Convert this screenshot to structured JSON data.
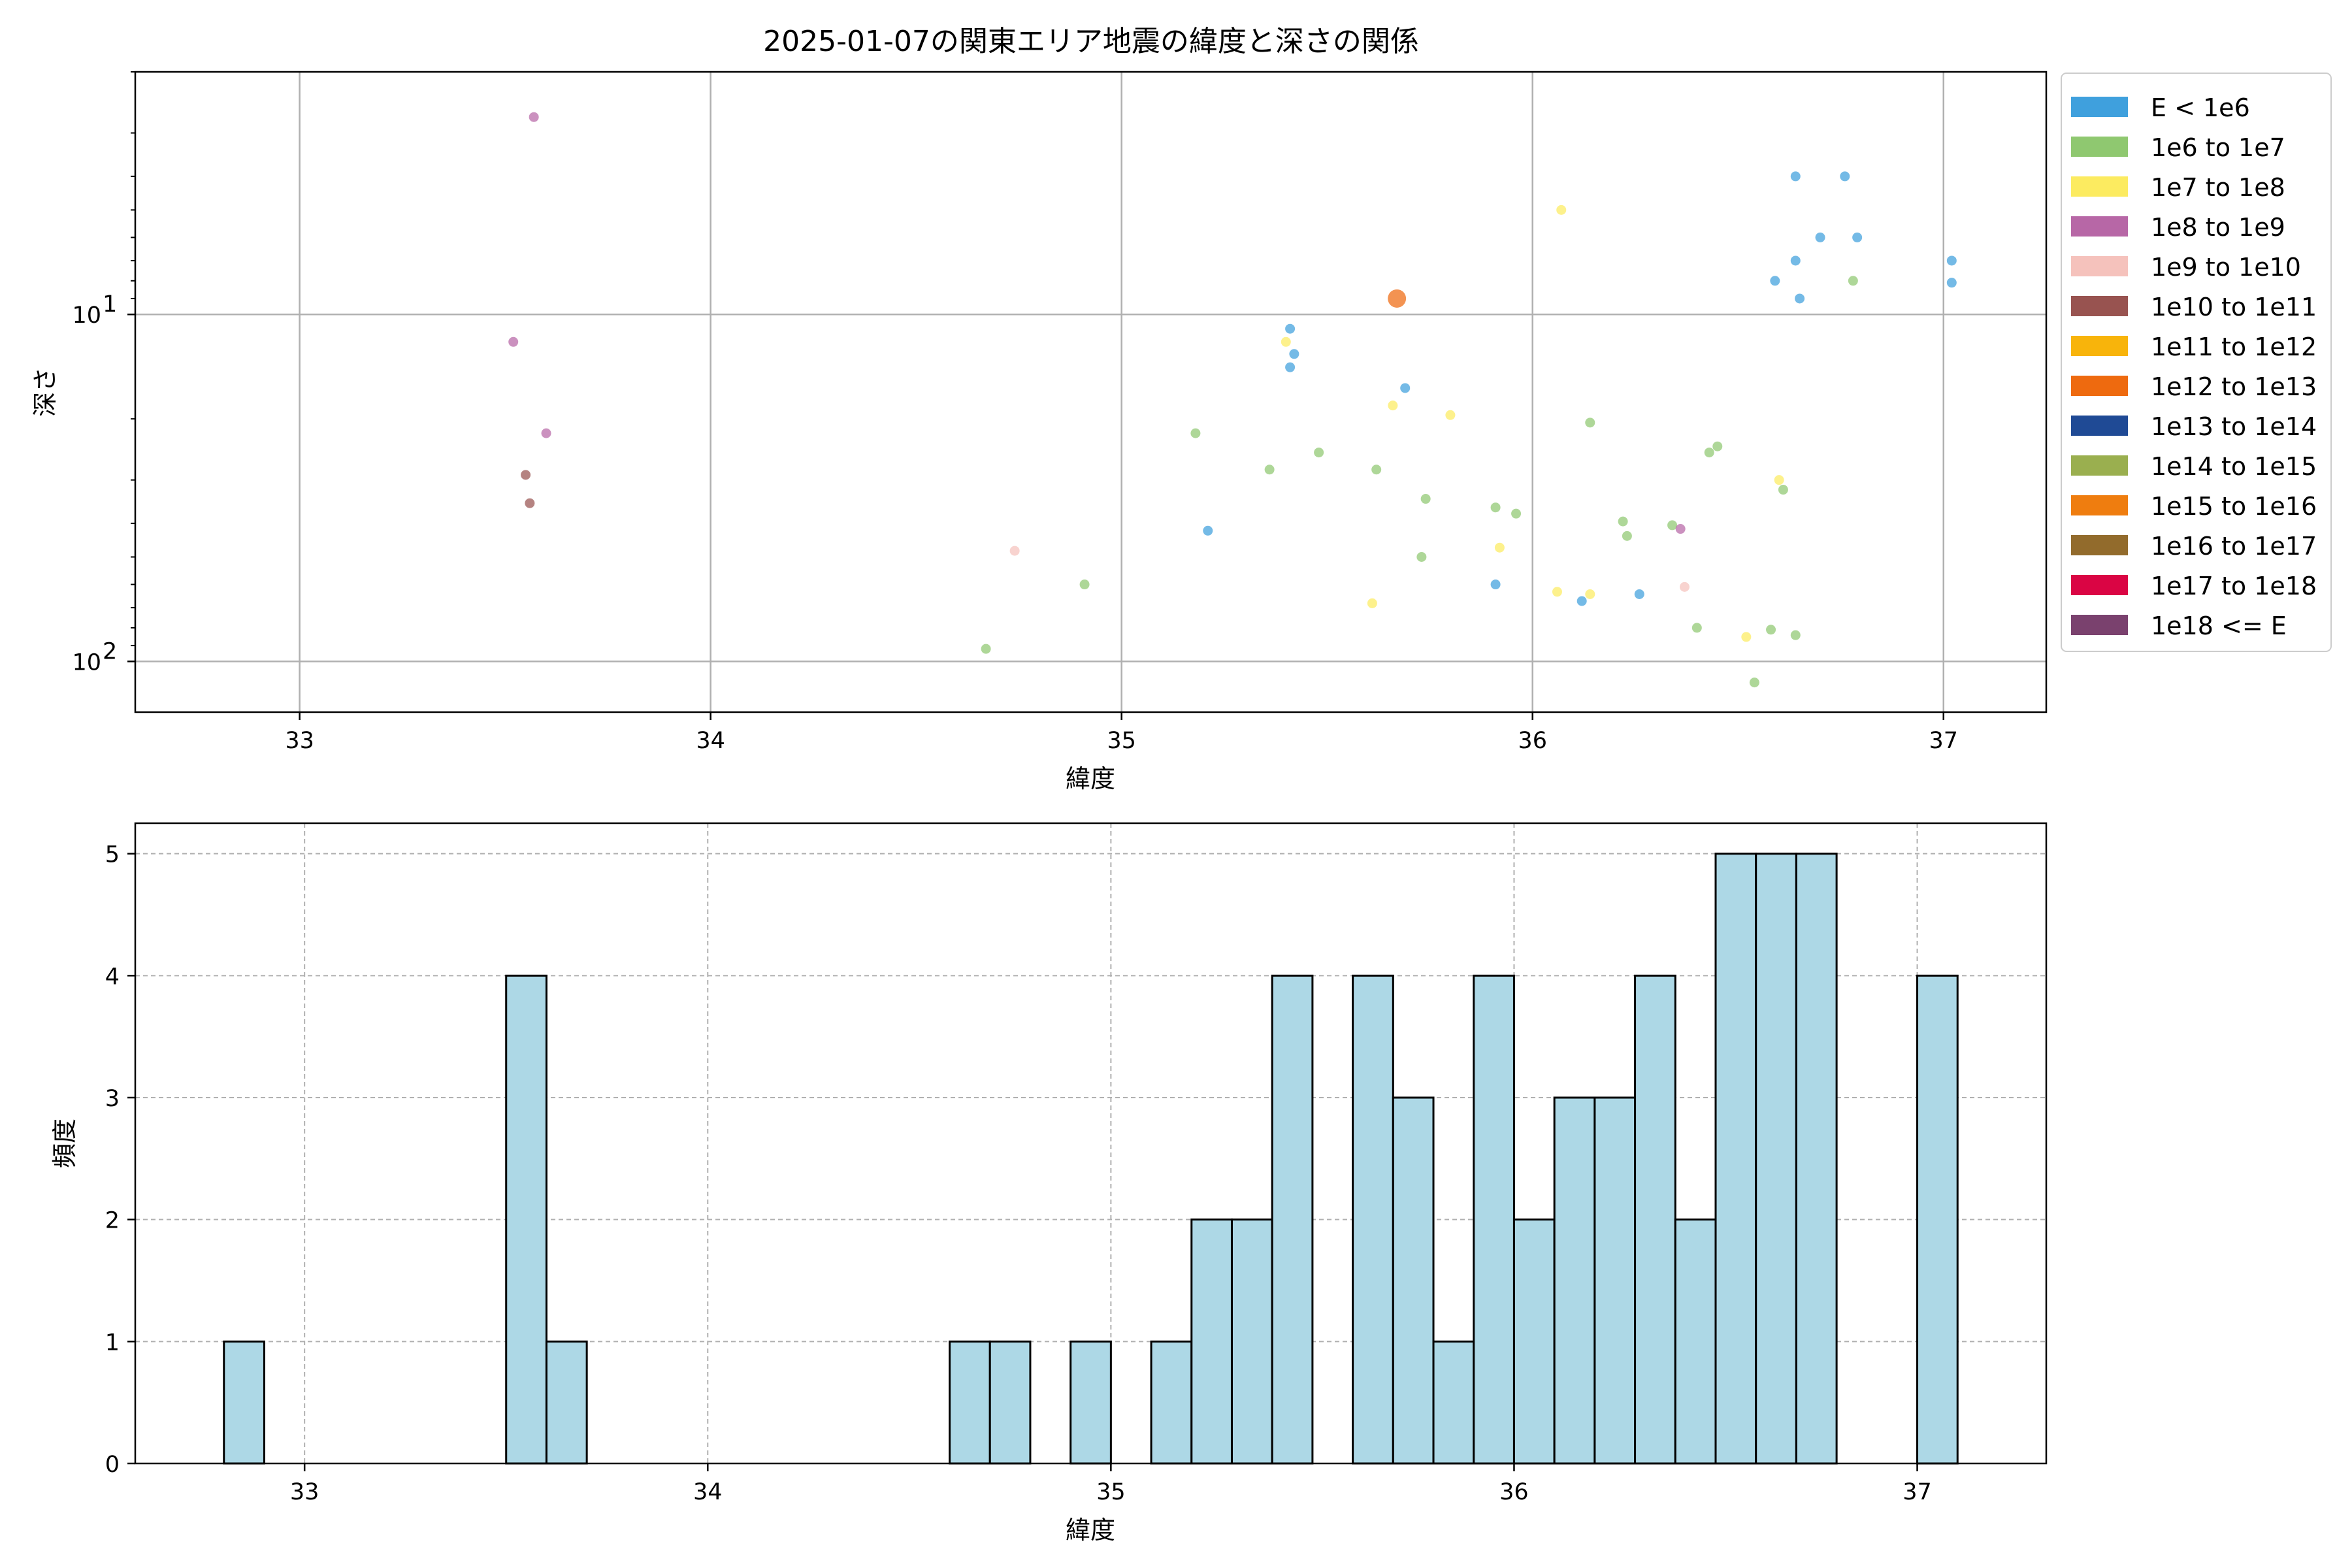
{
  "chart_data": [
    {
      "type": "scatter",
      "title": "2025-01-07の関東エリア地震の緯度と深さの関係",
      "xlabel": "緯度",
      "ylabel": "深さ",
      "xlim": [
        32.6,
        37.25
      ],
      "xticks": [
        33,
        34,
        35,
        36,
        37
      ],
      "yscale": "log",
      "yinverted": true,
      "ylim": [
        140,
        2
      ],
      "yticks": [
        {
          "value": 10,
          "label": "10",
          "sup": "1"
        },
        {
          "value": 100,
          "label": "10",
          "sup": "2"
        }
      ],
      "grid": true,
      "legend_position": "outside-right",
      "legend": [
        {
          "label": "E < 1e6",
          "color": "#3fa0dd"
        },
        {
          "label": "1e6 to 1e7",
          "color": "#8fc870"
        },
        {
          "label": "1e7 to 1e8",
          "color": "#fceb60"
        },
        {
          "label": "1e8 to 1e9",
          "color": "#b767a6"
        },
        {
          "label": "1e9 to 1e10",
          "color": "#f5c2bc"
        },
        {
          "label": "1e10 to 1e11",
          "color": "#985350"
        },
        {
          "label": "1e11 to 1e12",
          "color": "#f8b40b"
        },
        {
          "label": "1e12 to 1e13",
          "color": "#ee6a0f"
        },
        {
          "label": "1e13 to 1e14",
          "color": "#1f4a95"
        },
        {
          "label": "1e14 to 1e15",
          "color": "#9aaf4f"
        },
        {
          "label": "1e15 to 1e16",
          "color": "#ef7d0f"
        },
        {
          "label": "1e16 to 1e17",
          "color": "#926b2c"
        },
        {
          "label": "1e17 to 1e18",
          "color": "#da0544"
        },
        {
          "label": "1e18 <= E",
          "color": "#7a416e"
        }
      ],
      "points": [
        {
          "x": 33.57,
          "y": 2.7,
          "c": 3
        },
        {
          "x": 33.52,
          "y": 12,
          "c": 3
        },
        {
          "x": 33.6,
          "y": 22,
          "c": 3
        },
        {
          "x": 33.55,
          "y": 29,
          "c": 5
        },
        {
          "x": 33.56,
          "y": 35,
          "c": 5
        },
        {
          "x": 34.67,
          "y": 92,
          "c": 1
        },
        {
          "x": 34.74,
          "y": 48,
          "c": 4
        },
        {
          "x": 34.91,
          "y": 60,
          "c": 1
        },
        {
          "x": 35.18,
          "y": 22,
          "c": 1
        },
        {
          "x": 35.21,
          "y": 42,
          "c": 0
        },
        {
          "x": 35.36,
          "y": 28,
          "c": 1
        },
        {
          "x": 35.4,
          "y": 12,
          "c": 2
        },
        {
          "x": 35.41,
          "y": 11,
          "c": 0
        },
        {
          "x": 35.42,
          "y": 13,
          "c": 0
        },
        {
          "x": 35.41,
          "y": 14.2,
          "c": 0
        },
        {
          "x": 35.48,
          "y": 25,
          "c": 1
        },
        {
          "x": 35.61,
          "y": 68,
          "c": 2
        },
        {
          "x": 35.62,
          "y": 28,
          "c": 1
        },
        {
          "x": 35.66,
          "y": 18.3,
          "c": 2
        },
        {
          "x": 35.67,
          "y": 9,
          "c": 7,
          "big": true
        },
        {
          "x": 35.69,
          "y": 16.3,
          "c": 0
        },
        {
          "x": 35.73,
          "y": 50,
          "c": 1
        },
        {
          "x": 35.74,
          "y": 34,
          "c": 1
        },
        {
          "x": 35.8,
          "y": 19.5,
          "c": 2
        },
        {
          "x": 35.91,
          "y": 60,
          "c": 0
        },
        {
          "x": 35.91,
          "y": 36,
          "c": 1
        },
        {
          "x": 35.92,
          "y": 47,
          "c": 2
        },
        {
          "x": 35.96,
          "y": 37.5,
          "c": 1
        },
        {
          "x": 36.06,
          "y": 63,
          "c": 2
        },
        {
          "x": 36.07,
          "y": 5,
          "c": 2
        },
        {
          "x": 36.12,
          "y": 67,
          "c": 0
        },
        {
          "x": 36.14,
          "y": 64,
          "c": 2
        },
        {
          "x": 36.14,
          "y": 20.5,
          "c": 1
        },
        {
          "x": 36.22,
          "y": 39.5,
          "c": 1
        },
        {
          "x": 36.23,
          "y": 43.5,
          "c": 1
        },
        {
          "x": 36.26,
          "y": 64,
          "c": 0
        },
        {
          "x": 36.34,
          "y": 40.5,
          "c": 1
        },
        {
          "x": 36.36,
          "y": 41.5,
          "c": 3
        },
        {
          "x": 36.37,
          "y": 61,
          "c": 4
        },
        {
          "x": 36.4,
          "y": 80,
          "c": 1
        },
        {
          "x": 36.43,
          "y": 25,
          "c": 1
        },
        {
          "x": 36.45,
          "y": 24,
          "c": 1
        },
        {
          "x": 36.52,
          "y": 85,
          "c": 2
        },
        {
          "x": 36.54,
          "y": 115,
          "c": 1
        },
        {
          "x": 36.58,
          "y": 81,
          "c": 1
        },
        {
          "x": 36.59,
          "y": 8,
          "c": 0
        },
        {
          "x": 36.6,
          "y": 30,
          "c": 2
        },
        {
          "x": 36.61,
          "y": 32,
          "c": 1
        },
        {
          "x": 36.64,
          "y": 84,
          "c": 1
        },
        {
          "x": 36.64,
          "y": 4,
          "c": 0
        },
        {
          "x": 36.64,
          "y": 7,
          "c": 0
        },
        {
          "x": 36.65,
          "y": 9,
          "c": 0
        },
        {
          "x": 36.7,
          "y": 6,
          "c": 0
        },
        {
          "x": 36.76,
          "y": 4,
          "c": 0
        },
        {
          "x": 36.78,
          "y": 8,
          "c": 1
        },
        {
          "x": 36.79,
          "y": 6,
          "c": 0
        },
        {
          "x": 37.02,
          "y": 7,
          "c": 0
        },
        {
          "x": 37.02,
          "y": 8.1,
          "c": 0
        }
      ]
    },
    {
      "type": "bar",
      "subtype": "histogram",
      "xlabel": "緯度",
      "ylabel": "頻度",
      "xlim": [
        32.58,
        37.32
      ],
      "xticks": [
        33,
        34,
        35,
        36,
        37
      ],
      "ylim": [
        0,
        5.25
      ],
      "yticks": [
        0,
        1,
        2,
        3,
        4,
        5
      ],
      "bin_width": 0.1,
      "bar_color": "#add8e6",
      "grid": true,
      "bins": [
        {
          "start": 32.8,
          "count": 1
        },
        {
          "start": 33.5,
          "count": 4
        },
        {
          "start": 33.6,
          "count": 1
        },
        {
          "start": 34.6,
          "count": 1
        },
        {
          "start": 34.7,
          "count": 1
        },
        {
          "start": 34.9,
          "count": 1
        },
        {
          "start": 35.1,
          "count": 1
        },
        {
          "start": 35.2,
          "count": 2
        },
        {
          "start": 35.3,
          "count": 2
        },
        {
          "start": 35.4,
          "count": 4
        },
        {
          "start": 35.6,
          "count": 4
        },
        {
          "start": 35.7,
          "count": 3
        },
        {
          "start": 35.8,
          "count": 1
        },
        {
          "start": 35.9,
          "count": 4
        },
        {
          "start": 36.0,
          "count": 2
        },
        {
          "start": 36.1,
          "count": 3
        },
        {
          "start": 36.2,
          "count": 3
        },
        {
          "start": 36.3,
          "count": 4
        },
        {
          "start": 36.4,
          "count": 2
        },
        {
          "start": 36.5,
          "count": 5
        },
        {
          "start": 36.6,
          "count": 5
        },
        {
          "start": 36.7,
          "count": 5
        },
        {
          "start": 37.0,
          "count": 4
        }
      ]
    }
  ]
}
